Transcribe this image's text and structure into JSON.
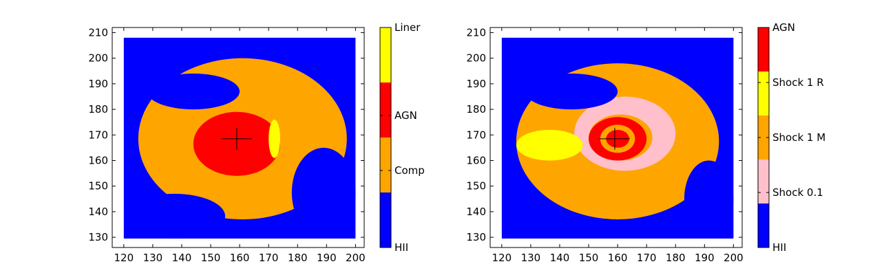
{
  "chart_data": [
    {
      "type": "heatmap",
      "title": "",
      "xlabel": "",
      "ylabel": "",
      "xlim": [
        116,
        203
      ],
      "ylim": [
        126,
        212
      ],
      "xticks": [
        120,
        130,
        140,
        150,
        160,
        170,
        180,
        190,
        200
      ],
      "yticks": [
        130,
        140,
        150,
        160,
        170,
        180,
        190,
        200,
        210
      ],
      "crosshair": {
        "x": 159,
        "y": 168.5
      },
      "grid": false,
      "colorbar": {
        "categories": [
          {
            "label": "HII",
            "color": "#0000ff"
          },
          {
            "label": "Comp",
            "color": "#ffa500"
          },
          {
            "label": "AGN",
            "color": "#ff0000"
          },
          {
            "label": "Liner",
            "color": "#ffff00"
          }
        ],
        "labels": [
          "HII",
          "Comp",
          "AGN",
          "Liner"
        ],
        "label_positions": [
          0,
          1.4,
          2.4,
          4
        ]
      },
      "regions": [
        {
          "class": "HII",
          "x": [
            120,
            200
          ],
          "y": [
            129.5,
            208
          ]
        },
        {
          "class": "Comp",
          "x": [
            125,
            197
          ],
          "y": [
            137,
            200
          ]
        },
        {
          "class": "AGN",
          "x": [
            144,
            174
          ],
          "y": [
            154,
            179
          ]
        },
        {
          "class": "Liner",
          "x": [
            170,
            174
          ],
          "y": [
            161,
            176
          ]
        },
        {
          "class": "HII",
          "x": [
            128,
            160
          ],
          "y": [
            180,
            194
          ]
        },
        {
          "class": "HII",
          "x": [
            178,
            200
          ],
          "y": [
            130,
            165
          ]
        },
        {
          "class": "HII",
          "x": [
            120,
            155
          ],
          "y": [
            129.5,
            147
          ]
        }
      ]
    },
    {
      "type": "heatmap",
      "title": "",
      "xlabel": "",
      "ylabel": "",
      "xlim": [
        116,
        203
      ],
      "ylim": [
        126,
        212
      ],
      "xticks": [
        120,
        130,
        140,
        150,
        160,
        170,
        180,
        190,
        200
      ],
      "yticks": [
        130,
        140,
        150,
        160,
        170,
        180,
        190,
        200,
        210
      ],
      "crosshair": {
        "x": 159,
        "y": 168.5
      },
      "grid": false,
      "colorbar": {
        "categories": [
          {
            "label": "HII",
            "color": "#0000ff"
          },
          {
            "label": "Shock 0.1",
            "color": "#ffc0cb"
          },
          {
            "label": "Shock 1 M",
            "color": "#ffa500"
          },
          {
            "label": "Shock 1 R",
            "color": "#ffff00"
          },
          {
            "label": "AGN",
            "color": "#ff0000"
          }
        ],
        "labels": [
          "HII",
          "Shock 0.1",
          "Shock 1 M",
          "Shock 1 R",
          "AGN"
        ],
        "label_positions": [
          0,
          1.25,
          2.5,
          3.75,
          5
        ]
      },
      "regions": [
        {
          "class": "HII",
          "x": [
            120,
            200
          ],
          "y": [
            129.5,
            208
          ]
        },
        {
          "class": "Shock 1 M",
          "x": [
            125,
            195
          ],
          "y": [
            137,
            198
          ]
        },
        {
          "class": "Shock 0.1",
          "x": [
            145,
            180
          ],
          "y": [
            156,
            185
          ]
        },
        {
          "class": "Shock 1 M",
          "x": [
            150,
            172
          ],
          "y": [
            160,
            178
          ]
        },
        {
          "class": "AGN",
          "x": [
            150,
            170
          ],
          "y": [
            160,
            177
          ]
        },
        {
          "class": "Shock 1 M",
          "x": [
            154,
            166
          ],
          "y": [
            163,
            174
          ]
        },
        {
          "class": "AGN",
          "x": [
            156,
            164
          ],
          "y": [
            165,
            172
          ]
        },
        {
          "class": "Shock 1 R",
          "x": [
            125,
            148
          ],
          "y": [
            160,
            172
          ]
        },
        {
          "class": "HII",
          "x": [
            128,
            160
          ],
          "y": [
            180,
            194
          ]
        },
        {
          "class": "HII",
          "x": [
            183,
            200
          ],
          "y": [
            130,
            160
          ]
        }
      ]
    }
  ]
}
